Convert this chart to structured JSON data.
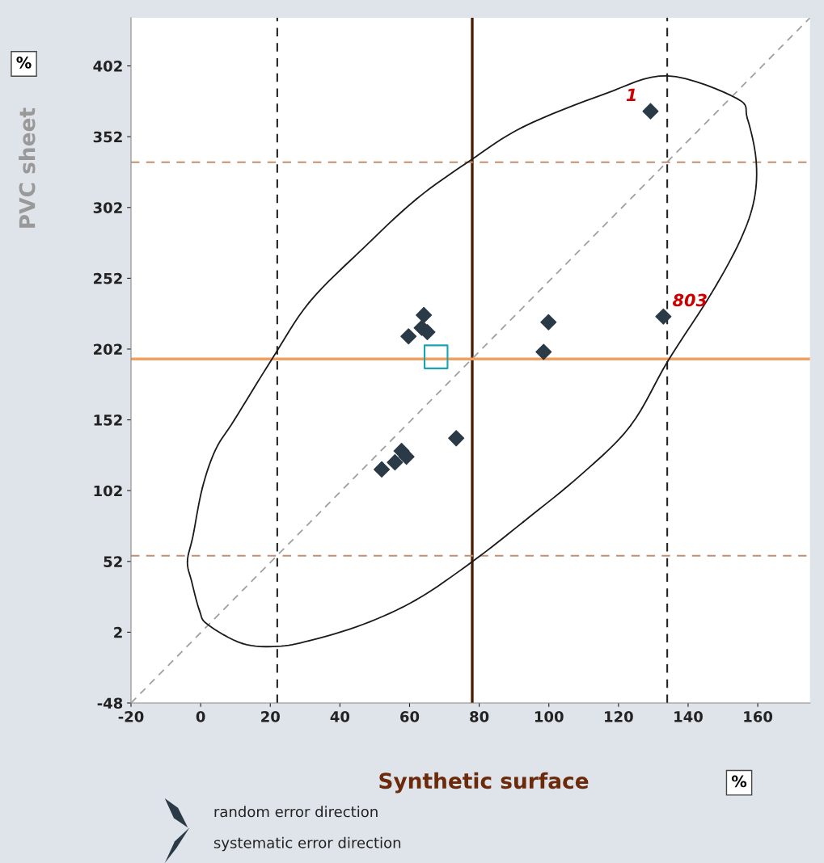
{
  "chart_data": {
    "type": "scatter",
    "xlabel": "Synthetic surface",
    "ylabel": "PVC sheet",
    "xlim": [
      -20,
      175
    ],
    "ylim": [
      -48,
      436
    ],
    "xticks": [
      -20,
      0,
      20,
      40,
      60,
      80,
      100,
      120,
      140,
      160
    ],
    "yticks": [
      -48,
      2,
      52,
      102,
      152,
      202,
      252,
      302,
      352,
      402
    ],
    "grid": false,
    "series": [
      {
        "color": "#2b3a47",
        "marker": "diamond",
        "x": [
          129.2,
          132.9,
          99.9,
          98.5,
          64.1,
          63.5,
          65.1,
          59.7,
          52.0,
          55.8,
          57.7,
          59.1,
          73.4
        ],
        "values": [
          370,
          225,
          221,
          200,
          226,
          217,
          214,
          211,
          117,
          122,
          130,
          126,
          139
        ]
      },
      {
        "color": "#1aa3b0",
        "marker": "square",
        "x": [
          67.6
        ],
        "values": [
          196.5
        ]
      },
      {
        "type": "line",
        "color": "#a0a0a0",
        "line_style": "dashed",
        "marker": "none",
        "x": [
          -20,
          175
        ],
        "values": [
          -48,
          436
        ]
      }
    ],
    "ref_lines": [
      {
        "axis": "x",
        "value": 78,
        "color": "#4a1e05",
        "line_style": "solid"
      },
      {
        "axis": "x",
        "value": 22,
        "color": "#222222",
        "line_style": "dashed"
      },
      {
        "axis": "x",
        "value": 134,
        "color": "#222222",
        "line_style": "dashed"
      },
      {
        "axis": "y",
        "value": 195,
        "color": "#f0a060",
        "line_style": "solid"
      },
      {
        "axis": "y",
        "value": 56,
        "color": "#c09070",
        "line_style": "dashed"
      },
      {
        "axis": "y",
        "value": 334,
        "color": "#c09070",
        "line_style": "dashed"
      }
    ],
    "annotations": [
      "%",
      "%",
      "random error direction",
      "systematic error direction",
      {
        "text": "1",
        "x": 129.2,
        "y": 370
      },
      {
        "text": "803",
        "x": 132.9,
        "y": 225
      }
    ]
  }
}
